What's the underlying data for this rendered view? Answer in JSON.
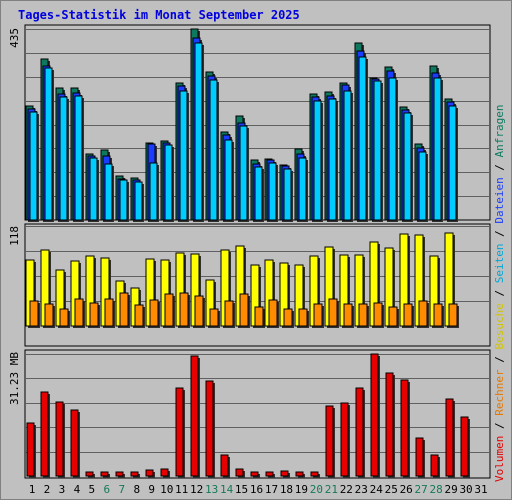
{
  "title": "Tages-Statistik im Monat September 2025",
  "colors": {
    "background": "#c0c0c0",
    "panel": "#c0c0c0",
    "grid": "#606060",
    "anfragen": "#0d7a60",
    "dateien": "#1a3cff",
    "seiten": "#00ccff",
    "besuche": "#ffff00",
    "rechner": "#ff8c00",
    "volumen": "#e60000",
    "weekend_day_label": "#157a56",
    "weekday_label": "#000000",
    "title": "#0000e0"
  },
  "right_legend": {
    "top": [
      {
        "text": "Anfragen",
        "color": "#0d7a60"
      },
      {
        "text": " / ",
        "color": "#000000"
      },
      {
        "text": "Dateien",
        "color": "#1a3cff"
      },
      {
        "text": " / ",
        "color": "#000000"
      },
      {
        "text": "Seiten",
        "color": "#00a6d6"
      },
      {
        "text": " / ",
        "color": "#000000"
      },
      {
        "text": "Besuche",
        "color": "#d2c400"
      }
    ],
    "bottom": [
      {
        "text": " / ",
        "color": "#000000"
      },
      {
        "text": "Rechner",
        "color": "#e67800"
      },
      {
        "text": " / ",
        "color": "#000000"
      },
      {
        "text": "Volumen",
        "color": "#e60000"
      }
    ]
  },
  "chart_data": [
    {
      "type": "bar",
      "name": "top",
      "y_max_label": "435",
      "ylim": [
        0,
        435
      ],
      "days": [
        "1",
        "2",
        "3",
        "4",
        "5",
        "6",
        "7",
        "8",
        "9",
        "10",
        "11",
        "12",
        "13",
        "14",
        "15",
        "16",
        "17",
        "18",
        "19",
        "20",
        "21",
        "22",
        "23",
        "24",
        "25",
        "26",
        "27",
        "28",
        "29",
        "30",
        "31"
      ],
      "weekend_days": [
        "6",
        "7",
        "13",
        "14",
        "20",
        "21",
        "27",
        "28"
      ],
      "series": [
        {
          "name": "Anfragen",
          "values": [
            260,
            367,
            301,
            301,
            150,
            160,
            100,
            96,
            176,
            180,
            312,
            435,
            336,
            201,
            236,
            136,
            140,
            126,
            161,
            286,
            291,
            312,
            404,
            324,
            349,
            257,
            172,
            350,
            275,
            0,
            0
          ]
        },
        {
          "name": "Dateien",
          "values": [
            252,
            351,
            287,
            290,
            145,
            146,
            94,
            90,
            172,
            175,
            305,
            414,
            328,
            193,
            221,
            127,
            136,
            123,
            150,
            280,
            282,
            307,
            384,
            322,
            340,
            251,
            163,
            335,
            268,
            0,
            0
          ]
        },
        {
          "name": "Seiten",
          "values": [
            246,
            346,
            280,
            283,
            141,
            127,
            91,
            87,
            130,
            170,
            294,
            402,
            319,
            182,
            213,
            121,
            130,
            116,
            142,
            271,
            275,
            294,
            371,
            316,
            323,
            243,
            154,
            323,
            260,
            0,
            0
          ]
        }
      ]
    },
    {
      "type": "bar",
      "name": "middle",
      "y_max_label": "118",
      "ylim": [
        0,
        118
      ],
      "series": [
        {
          "name": "Besuche",
          "values": [
            79,
            92,
            68,
            78,
            84,
            82,
            54,
            46,
            81,
            79,
            88,
            87,
            55,
            91,
            96,
            74,
            79,
            76,
            74,
            84,
            95,
            86,
            86,
            101,
            94,
            111,
            110,
            84,
            112,
            0,
            0
          ]
        },
        {
          "name": "Rechner",
          "values": [
            30,
            27,
            20,
            32,
            28,
            33,
            40,
            25,
            31,
            38,
            40,
            36,
            20,
            30,
            38,
            23,
            31,
            20,
            20,
            27,
            33,
            26,
            26,
            28,
            23,
            27,
            30,
            26,
            27,
            0,
            0
          ]
        }
      ]
    },
    {
      "type": "bar",
      "name": "bottom",
      "y_max_label": "31.23 MB",
      "ylim": [
        0,
        31.23
      ],
      "series": [
        {
          "name": "Volumen",
          "values": [
            13.5,
            21.5,
            19.0,
            16.8,
            1.1,
            1.1,
            1.1,
            1.1,
            1.5,
            1.7,
            22.6,
            30.6,
            24.4,
            5.5,
            1.7,
            1.1,
            1.1,
            1.4,
            1.1,
            1.1,
            17.8,
            18.8,
            22.5,
            31.23,
            26.4,
            24.7,
            9.8,
            5.5,
            19.8,
            15.0,
            0
          ]
        }
      ]
    }
  ]
}
